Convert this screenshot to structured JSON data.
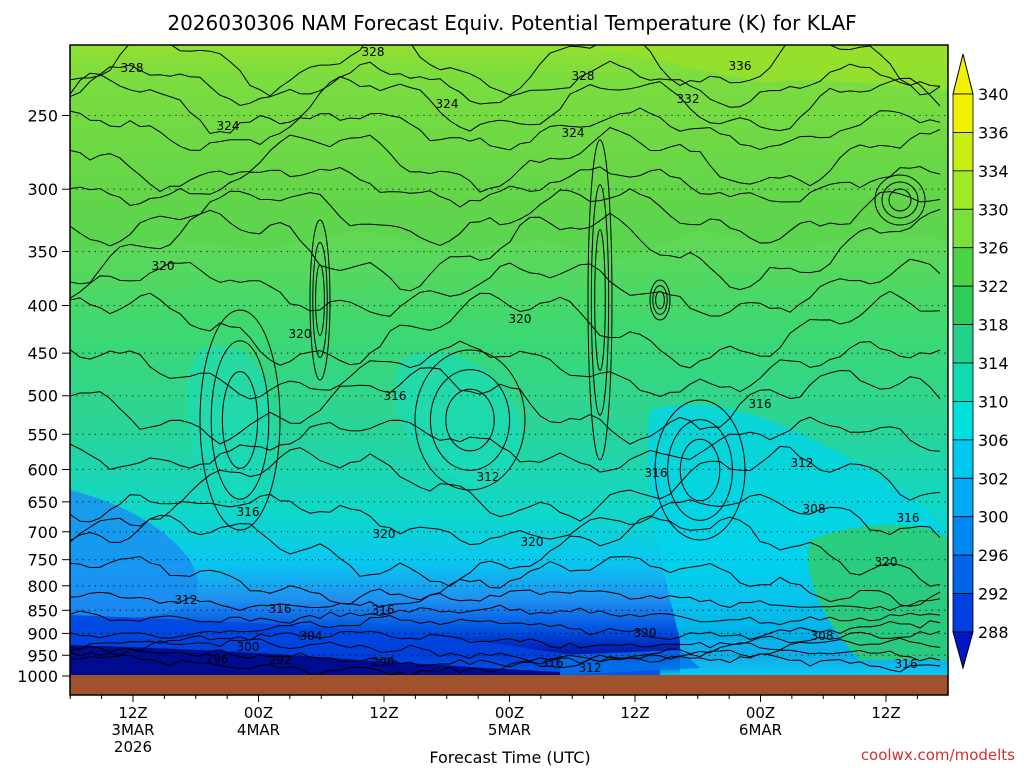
{
  "chart_data": {
    "type": "heatmap",
    "title": "2026030306 NAM Forecast Equiv. Potential Temperature (K) for KLAF",
    "xlabel": "Forecast Time (UTC)",
    "ylabel": "",
    "credit": "coolwx.com/modelts",
    "y_scale": "log-pressure",
    "y_ticks": [
      250,
      300,
      350,
      400,
      450,
      500,
      550,
      600,
      650,
      700,
      750,
      800,
      850,
      900,
      950,
      1000
    ],
    "ylim": [
      1000,
      210
    ],
    "x_ticks": [
      {
        "lines": [
          "12Z",
          "3MAR",
          "2026"
        ]
      },
      {
        "lines": [
          "00Z",
          "4MAR"
        ]
      },
      {
        "lines": [
          "12Z"
        ]
      },
      {
        "lines": [
          "00Z",
          "5MAR"
        ]
      },
      {
        "lines": [
          "12Z"
        ]
      },
      {
        "lines": [
          "00Z",
          "6MAR"
        ]
      },
      {
        "lines": [
          "12Z"
        ]
      }
    ],
    "colorbar": {
      "labels": [
        340,
        336,
        334,
        330,
        326,
        322,
        318,
        314,
        310,
        306,
        302,
        300,
        296,
        292,
        288
      ],
      "colors": [
        "#f0f000",
        "#c8ee14",
        "#a0ea28",
        "#7ae03a",
        "#4cd448",
        "#30cc5a",
        "#20d28c",
        "#10dcb4",
        "#00e0dc",
        "#00c8f0",
        "#00aaf5",
        "#0088f0",
        "#0064e6",
        "#0040e0",
        "#0014c8"
      ]
    },
    "grid": true,
    "contour_labels": [
      "328",
      "328",
      "328",
      "336",
      "332",
      "324",
      "324",
      "324",
      "320",
      "320",
      "320",
      "316",
      "316",
      "312",
      "316",
      "312",
      "316",
      "308",
      "320",
      "320",
      "316",
      "316",
      "316",
      "320",
      "320",
      "308",
      "304",
      "300",
      "296",
      "292",
      "296",
      "316",
      "312",
      "316",
      "312"
    ]
  }
}
